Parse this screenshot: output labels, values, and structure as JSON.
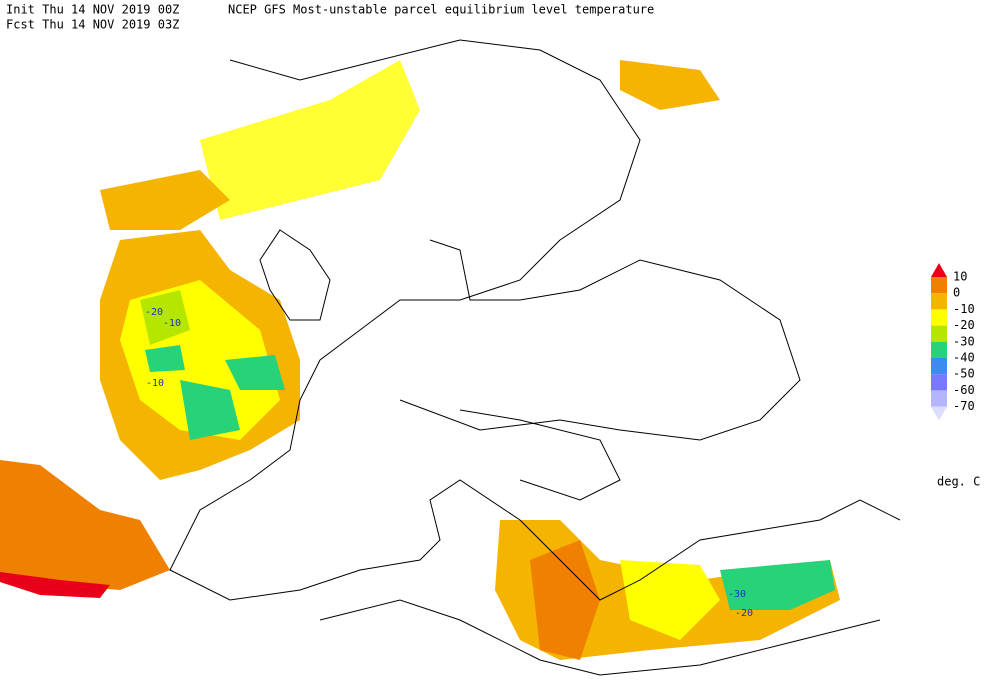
{
  "header": {
    "init": "Init  Thu 14 NOV 2019 00Z",
    "title": "NCEP GFS Most-unstable parcel equilibrium level temperature",
    "fcst": "Fcst Thu 14 NOV 2019 03Z"
  },
  "legend": {
    "levels": [
      10,
      0,
      -10,
      -20,
      -30,
      -40,
      -50,
      -60,
      -70
    ],
    "colors": [
      "#e8001a",
      "#f08000",
      "#f5b400",
      "#ffff00",
      "#b4e600",
      "#28d278",
      "#3c8cf0",
      "#7878ff",
      "#b4b4ff",
      "#dcdcff"
    ],
    "unit": "deg. C"
  },
  "contour_labels": [
    -20,
    -10,
    -10,
    -30,
    -20
  ]
}
